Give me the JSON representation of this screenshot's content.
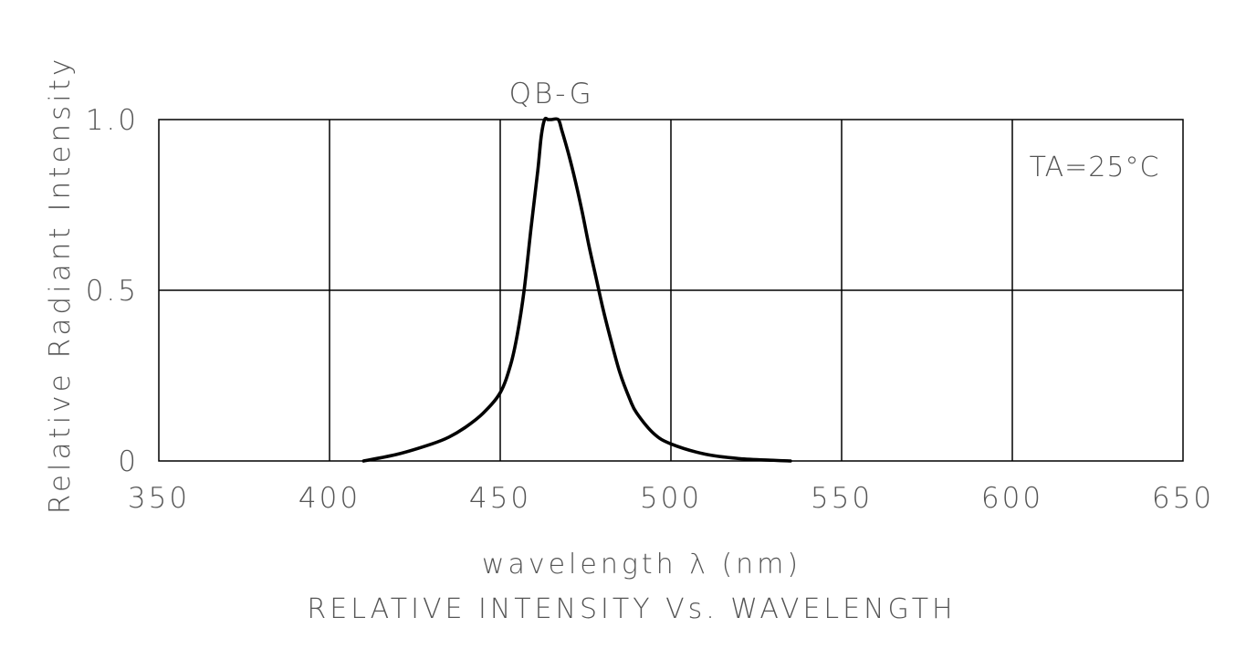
{
  "chart_data": {
    "type": "line",
    "title": "RELATIVE INTENSITY Vs. WAVELENGTH",
    "xlabel": "wavelength λ (nm)",
    "ylabel": "Relative Radiant Intensity",
    "xlim": [
      350,
      650
    ],
    "ylim": [
      0,
      1.0
    ],
    "x_ticks": [
      350,
      400,
      450,
      500,
      550,
      600,
      650
    ],
    "x_tick_labels": [
      "350",
      "400",
      "450",
      "500",
      "550",
      "600",
      "650"
    ],
    "y_ticks": [
      0,
      0.5,
      1.0
    ],
    "y_tick_labels": [
      "0",
      "0.5",
      "1.0"
    ],
    "grid": true,
    "annotations": {
      "peak_label": "QB-G",
      "temperature_label": "TA=25°C"
    },
    "series": [
      {
        "name": "QB-G",
        "x": [
          410,
          420,
          430,
          435,
          440,
          445,
          450,
          453,
          455,
          457,
          459,
          461,
          462,
          463,
          464,
          465,
          467,
          468,
          470,
          472,
          474,
          476,
          478,
          480,
          482,
          485,
          488,
          490,
          495,
          500,
          510,
          520,
          530,
          535
        ],
        "y": [
          0.0,
          0.02,
          0.05,
          0.07,
          0.1,
          0.14,
          0.2,
          0.28,
          0.37,
          0.5,
          0.68,
          0.85,
          0.95,
          1.0,
          1.0,
          1.0,
          1.0,
          0.97,
          0.9,
          0.82,
          0.73,
          0.63,
          0.54,
          0.45,
          0.37,
          0.26,
          0.18,
          0.14,
          0.08,
          0.05,
          0.02,
          0.007,
          0.002,
          0.0
        ]
      }
    ]
  }
}
